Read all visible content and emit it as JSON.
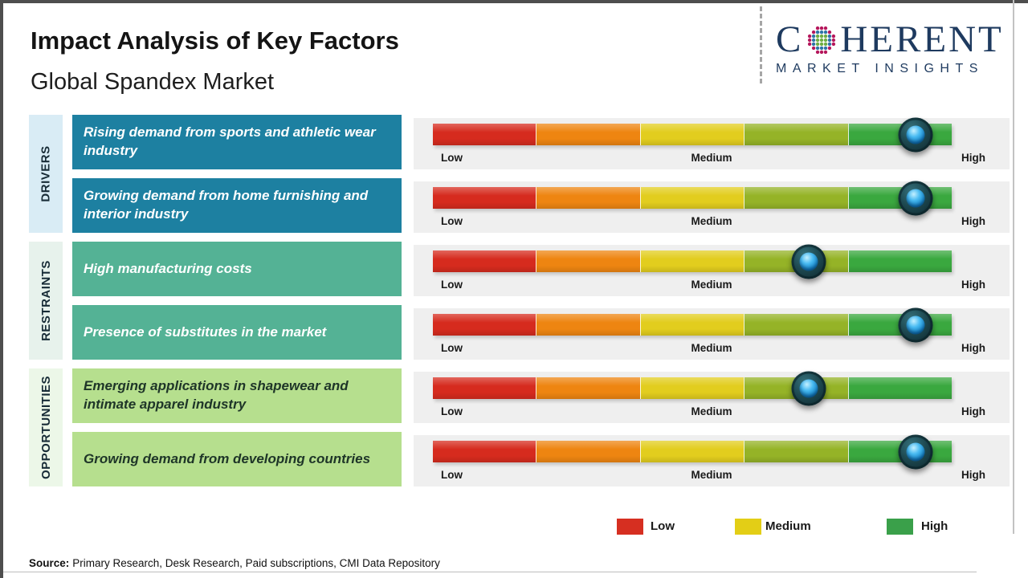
{
  "page": {
    "title": "Impact Analysis of Key Factors",
    "subtitle": "Global Spandex Market",
    "source_label": "Source:",
    "source_text": "Primary Research, Desk Research, Paid subscriptions, CMI Data Repository"
  },
  "logo": {
    "part1": "C",
    "part2": "HERENT",
    "tagline": "MARKET INSIGHTS",
    "brand_color": "#1e3a5f",
    "globe_dot_colors": {
      "inner": "#6fae44",
      "middle": "#2e75a8",
      "outer": "#b5175c"
    }
  },
  "categories": [
    {
      "label": "DRIVERS",
      "panel_color": "#d9ecf5",
      "box_color": "#1d80a1"
    },
    {
      "label": "RESTRAINTS",
      "panel_color": "#e7f2ec",
      "box_color": "#54b295"
    },
    {
      "label": "OPPORTUNITIES",
      "panel_color": "#ecf7e8",
      "box_color": "#b6df8e"
    }
  ],
  "scale_labels": {
    "low": "Low",
    "medium": "Medium",
    "high": "High"
  },
  "rows": [
    {
      "category": "Drivers",
      "factor": "Rising demand from sports and athletic wear industry",
      "impact_level": "High",
      "marker_percent": 93
    },
    {
      "category": "Drivers",
      "factor": "Growing demand from home furnishing and interior industry",
      "impact_level": "High",
      "marker_percent": 93
    },
    {
      "category": "Restraints",
      "factor": "High manufacturing costs",
      "impact_level": "Medium-High",
      "marker_percent": 72.5
    },
    {
      "category": "Restraints",
      "factor": "Presence of substitutes in the market",
      "impact_level": "High",
      "marker_percent": 93
    },
    {
      "category": "Opportunities",
      "factor": "Emerging applications in shapewear and intimate apparel industry",
      "impact_level": "Medium-High",
      "marker_percent": 72.5
    },
    {
      "category": "Opportunities",
      "factor": "Growing demand from developing countries",
      "impact_level": "High",
      "marker_percent": 93
    }
  ],
  "legend": [
    {
      "label": "Low",
      "color": "#d62f21"
    },
    {
      "label": "Medium",
      "color": "#e3ce16"
    },
    {
      "label": "High",
      "color": "#3aa04a"
    }
  ],
  "chart_data": {
    "type": "bar",
    "orientation": "horizontal",
    "title": "Impact Analysis of Key Factors",
    "subtitle": "Global Spandex Market",
    "scale": {
      "labels": [
        "Low",
        "Medium",
        "High"
      ],
      "range_percent": [
        0,
        100
      ]
    },
    "scale_colors": [
      "#d62b1e",
      "#ee8511",
      "#e2cd1e",
      "#95b327",
      "#3aa83f"
    ],
    "categories": [
      "Drivers",
      "Drivers",
      "Restraints",
      "Restraints",
      "Opportunities",
      "Opportunities"
    ],
    "factors": [
      "Rising demand from sports and athletic wear industry",
      "Growing demand from home furnishing and interior industry",
      "High manufacturing costs",
      "Presence of substitutes in the market",
      "Emerging applications in shapewear and intimate apparel industry",
      "Growing demand from developing countries"
    ],
    "values_percent": [
      93,
      93,
      72.5,
      93,
      72.5,
      93
    ],
    "impact_levels": [
      "High",
      "High",
      "Medium-High",
      "High",
      "Medium-High",
      "High"
    ],
    "legend_position": "bottom",
    "legend": [
      {
        "label": "Low",
        "color": "#d62f21"
      },
      {
        "label": "Medium",
        "color": "#e3ce16"
      },
      {
        "label": "High",
        "color": "#3aa04a"
      }
    ]
  }
}
